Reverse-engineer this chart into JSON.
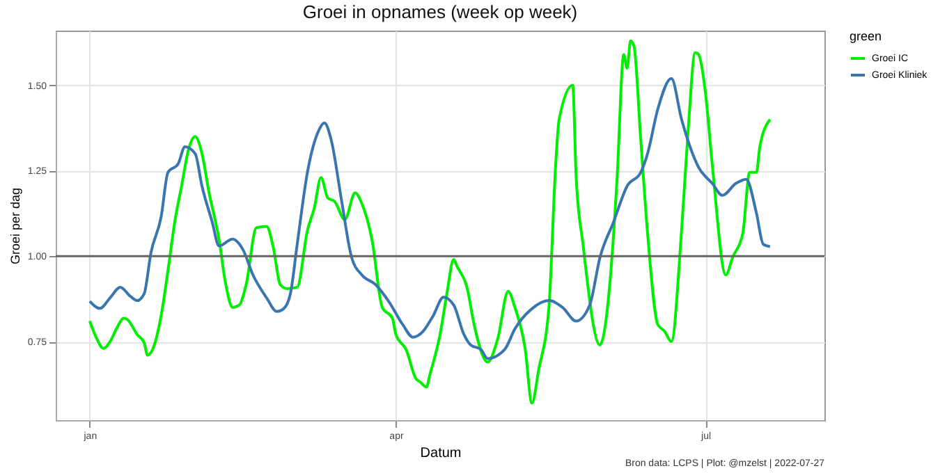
{
  "chart_data": {
    "type": "line",
    "title": "Groei in opnames (week op week)",
    "xlabel": "Datum",
    "ylabel": "Groei per dag",
    "legend_title": "green",
    "xlim": [
      "2021-12-22",
      "2022-08-05"
    ],
    "ylim": [
      0.52,
      1.66
    ],
    "xticks": [
      {
        "value": "2022-01-01",
        "label": "jan"
      },
      {
        "value": "2022-04-01",
        "label": "apr"
      },
      {
        "value": "2022-07-01",
        "label": "jul"
      }
    ],
    "yticks": [
      {
        "value": 0.75,
        "label": "0.75"
      },
      {
        "value": 1,
        "label": "1.00"
      },
      {
        "value": 1.25,
        "label": "1.25"
      },
      {
        "value": 1.5,
        "label": "1.50"
      }
    ],
    "grid": true,
    "legend": "right",
    "line_style": "solid",
    "marker": "none",
    "ref_lines": [
      {
        "axis": "y",
        "value": 1,
        "color": "#666666"
      }
    ],
    "annotations": [
      "Bron data: LCPS  | Plot: @mzelst |  2022-07-27"
    ],
    "series": [
      {
        "name": "Groei IC",
        "color": "#00ee00",
        "x": [
          "2022-01-01",
          "2022-01-03",
          "2022-01-05",
          "2022-01-07",
          "2022-01-09",
          "2022-01-11",
          "2022-01-12",
          "2022-01-15",
          "2022-01-17",
          "2022-01-18",
          "2022-01-20",
          "2022-01-22",
          "2022-01-24",
          "2022-01-26",
          "2022-01-28",
          "2022-01-30",
          "2022-02-01",
          "2022-02-03",
          "2022-02-05",
          "2022-02-08",
          "2022-02-10",
          "2022-02-12",
          "2022-02-14",
          "2022-02-16",
          "2022-02-19",
          "2022-02-22",
          "2022-02-24",
          "2022-02-26",
          "2022-02-28",
          "2022-03-03",
          "2022-03-06",
          "2022-03-08",
          "2022-03-10",
          "2022-03-12",
          "2022-03-14",
          "2022-03-17",
          "2022-03-20",
          "2022-03-22",
          "2022-03-25",
          "2022-03-28",
          "2022-03-31",
          "2022-04-01",
          "2022-04-04",
          "2022-04-07",
          "2022-04-08",
          "2022-04-10",
          "2022-04-11",
          "2022-04-14",
          "2022-04-16",
          "2022-04-18",
          "2022-04-19",
          "2022-04-22",
          "2022-04-24",
          "2022-04-28",
          "2022-05-01",
          "2022-05-04",
          "2022-05-06",
          "2022-05-09",
          "2022-05-11",
          "2022-05-13",
          "2022-05-16",
          "2022-05-18",
          "2022-05-19",
          "2022-05-23",
          "2022-05-24",
          "2022-05-26",
          "2022-05-31",
          "2022-06-03",
          "2022-06-05",
          "2022-06-07",
          "2022-06-08",
          "2022-06-09",
          "2022-06-10",
          "2022-06-12",
          "2022-06-14",
          "2022-06-17",
          "2022-06-19",
          "2022-06-21",
          "2022-06-24",
          "2022-06-26",
          "2022-06-28",
          "2022-06-29",
          "2022-07-01",
          "2022-07-03",
          "2022-07-07",
          "2022-07-09",
          "2022-07-12",
          "2022-07-14",
          "2022-07-16",
          "2022-07-17",
          "2022-07-20"
        ],
        "values": [
          0.81,
          0.76,
          0.73,
          0.75,
          0.79,
          0.818,
          0.815,
          0.77,
          0.747,
          0.71,
          0.74,
          0.826,
          0.957,
          1.1,
          1.205,
          1.31,
          1.35,
          1.3,
          1.19,
          1.05,
          0.917,
          0.85,
          0.857,
          0.917,
          1.083,
          1.087,
          1.024,
          0.917,
          0.905,
          0.909,
          1.075,
          1.14,
          1.23,
          1.17,
          1.16,
          1.107,
          1.185,
          1.154,
          1.047,
          0.85,
          0.818,
          0.771,
          0.727,
          0.64,
          0.633,
          0.617,
          0.653,
          0.771,
          0.89,
          0.99,
          0.97,
          0.905,
          0.8,
          0.69,
          0.76,
          0.897,
          0.85,
          0.73,
          0.57,
          0.668,
          0.85,
          1.27,
          1.4,
          1.5,
          1.233,
          1.036,
          0.74,
          0.93,
          1.22,
          1.59,
          1.55,
          1.63,
          1.615,
          1.34,
          1.067,
          0.8,
          0.78,
          0.75,
          1.075,
          1.38,
          1.596,
          1.59,
          1.48,
          1.27,
          0.945,
          0.996,
          1.067,
          1.245,
          1.245,
          1.32,
          1.4
        ]
      },
      {
        "name": "Groei Kliniek",
        "color": "#3a75b0",
        "x": [
          "2022-01-01",
          "2022-01-04",
          "2022-01-07",
          "2022-01-10",
          "2022-01-13",
          "2022-01-15",
          "2022-01-17",
          "2022-01-19",
          "2022-01-22",
          "2022-01-24",
          "2022-01-27",
          "2022-01-29",
          "2022-02-01",
          "2022-02-03",
          "2022-02-06",
          "2022-02-08",
          "2022-02-12",
          "2022-02-15",
          "2022-02-18",
          "2022-02-22",
          "2022-02-25",
          "2022-02-27",
          "2022-03-01",
          "2022-03-03",
          "2022-03-06",
          "2022-03-09",
          "2022-03-11",
          "2022-03-13",
          "2022-03-16",
          "2022-03-19",
          "2022-03-22",
          "2022-03-26",
          "2022-03-30",
          "2022-04-03",
          "2022-04-06",
          "2022-04-09",
          "2022-04-12",
          "2022-04-15",
          "2022-04-18",
          "2022-04-21",
          "2022-04-23",
          "2022-04-26",
          "2022-04-28",
          "2022-05-03",
          "2022-05-06",
          "2022-05-11",
          "2022-05-16",
          "2022-05-20",
          "2022-05-24",
          "2022-05-28",
          "2022-05-31",
          "2022-06-04",
          "2022-06-08",
          "2022-06-12",
          "2022-06-14",
          "2022-06-17",
          "2022-06-21",
          "2022-06-24",
          "2022-06-29",
          "2022-07-03",
          "2022-07-06",
          "2022-07-10",
          "2022-07-13",
          "2022-07-16",
          "2022-07-18",
          "2022-07-20"
        ],
        "values": [
          0.868,
          0.847,
          0.878,
          0.909,
          0.882,
          0.87,
          0.89,
          1.01,
          1.115,
          1.245,
          1.27,
          1.32,
          1.3,
          1.205,
          1.1,
          1.03,
          1.05,
          1.02,
          0.945,
          0.878,
          0.838,
          0.846,
          0.89,
          1.035,
          1.245,
          1.36,
          1.39,
          1.34,
          1.165,
          0.996,
          0.945,
          0.917,
          0.866,
          0.8,
          0.763,
          0.78,
          0.826,
          0.88,
          0.857,
          0.771,
          0.74,
          0.727,
          0.7,
          0.727,
          0.787,
          0.846,
          0.87,
          0.85,
          0.81,
          0.857,
          0.996,
          1.1,
          1.205,
          1.245,
          1.3,
          1.43,
          1.52,
          1.4,
          1.26,
          1.213,
          1.178,
          1.213,
          1.225,
          1.126,
          1.035,
          1.028
        ]
      }
    ]
  }
}
